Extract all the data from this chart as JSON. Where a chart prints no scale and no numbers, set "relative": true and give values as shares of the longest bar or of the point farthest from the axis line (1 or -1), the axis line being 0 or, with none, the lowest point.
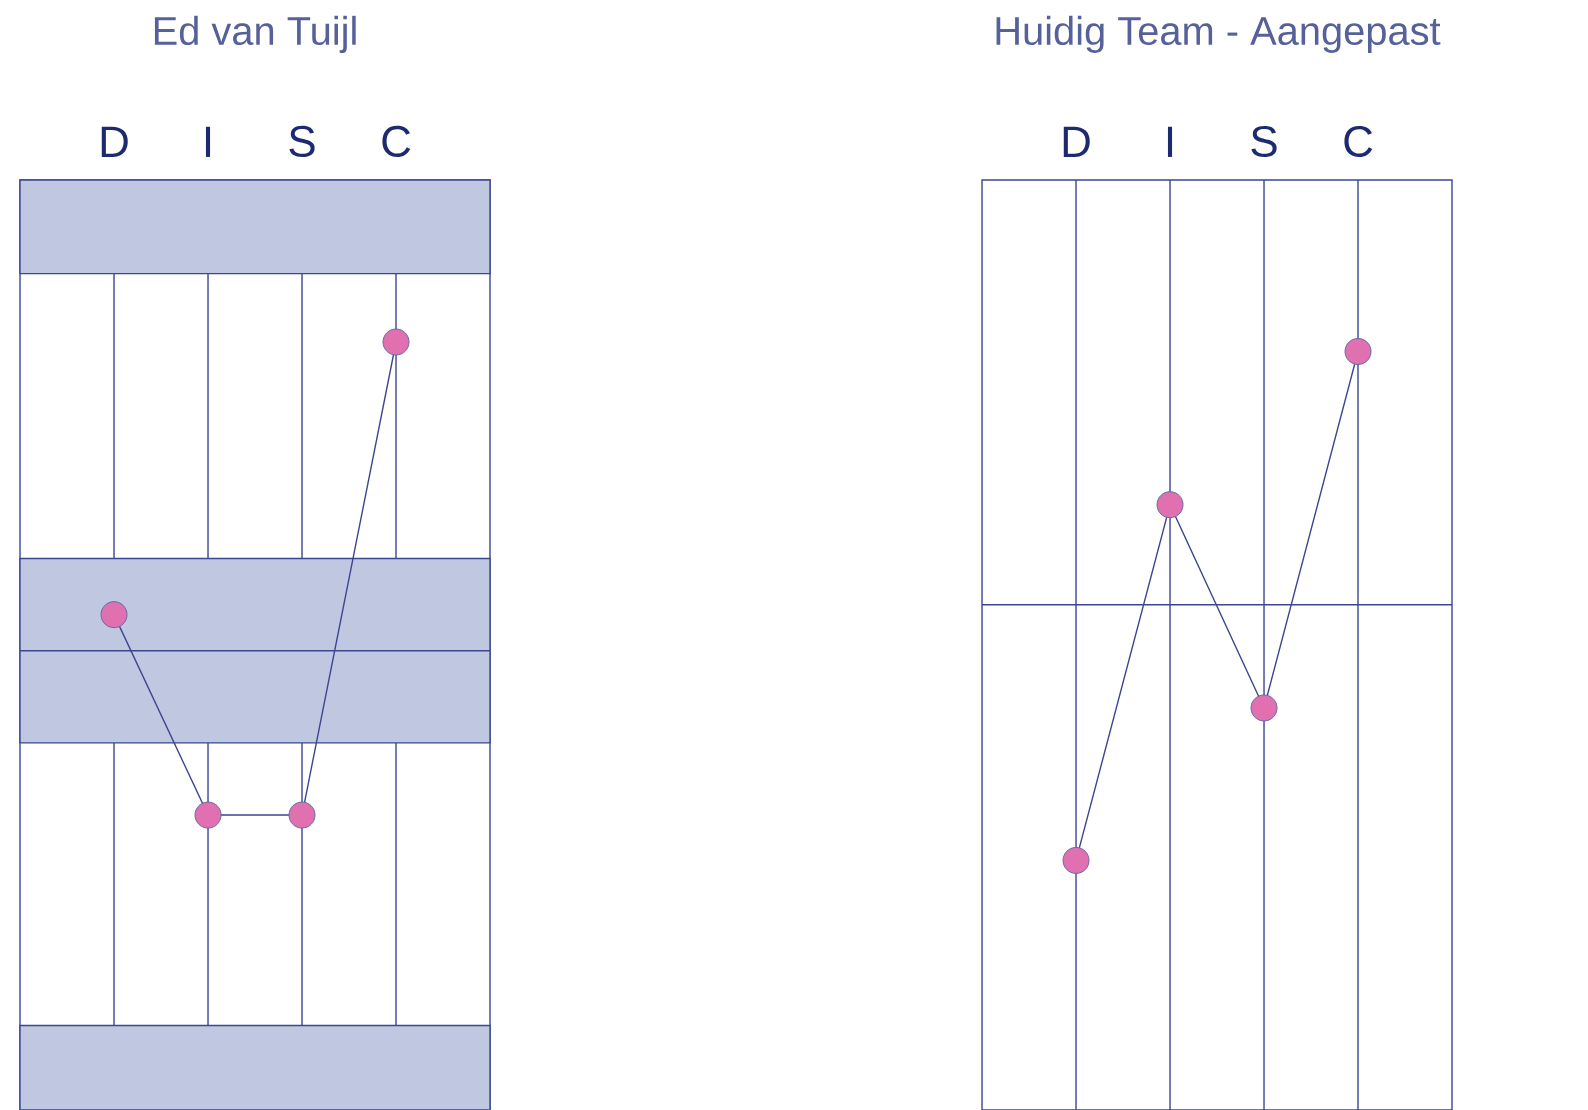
{
  "chart_data": [
    {
      "type": "line",
      "title": "Ed van Tuijl",
      "categories": [
        "D",
        "I",
        "S",
        "C"
      ],
      "relative": true,
      "marker": "circle",
      "grid": "x",
      "series": [
        {
          "color": "#e070b0",
          "values": [
            0.645,
            0.384,
            0.384,
            1
          ]
        }
      ],
      "bands": [
        {
          "axis": "y",
          "from": 1.089,
          "to": 1.211,
          "color": "#bfc8e0"
        },
        {
          "axis": "y",
          "from": 0.478,
          "to": 0.718,
          "color": "#bfc8e0"
        },
        {
          "axis": "y",
          "from": 0,
          "to": 0.11,
          "color": "#bfc8e0"
        }
      ],
      "ref_lines": [
        {
          "axis": "y",
          "value": 0.598
        }
      ]
    },
    {
      "type": "line",
      "title": "Huidig Team - Aangepast",
      "categories": [
        "D",
        "I",
        "S",
        "C"
      ],
      "relative": true,
      "marker": "circle",
      "grid": "x",
      "series": [
        {
          "color": "#e070b0",
          "values": [
            0.329,
            0.798,
            0.53,
            1
          ]
        }
      ],
      "ref_lines": [
        {
          "axis": "y",
          "value": 0.666
        }
      ]
    }
  ]
}
